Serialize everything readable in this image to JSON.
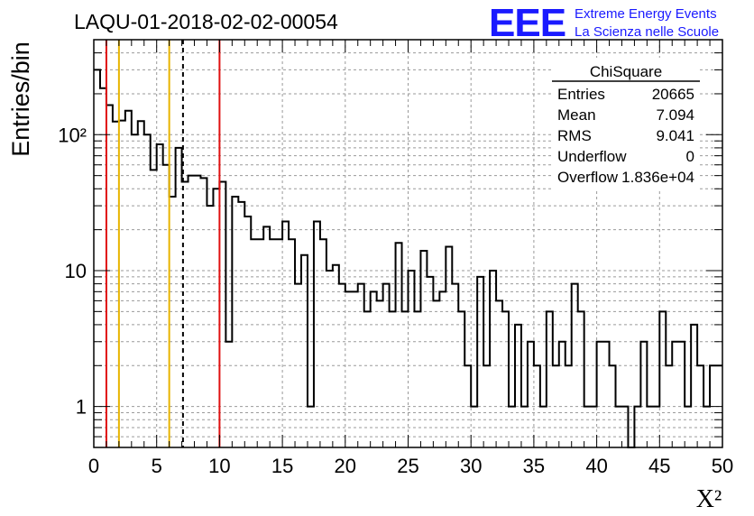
{
  "header": {
    "run_title": "LAQU-01-2018-02-02-00054",
    "logo_text": "EEE",
    "org_line1": "Extreme Energy Events",
    "org_line2": "La Scienza nelle Scuole"
  },
  "stats": {
    "name": "ChiSquare",
    "rows": [
      {
        "label": "Entries",
        "value": "20665"
      },
      {
        "label": "Mean",
        "value": "7.094"
      },
      {
        "label": "RMS",
        "value": "9.041"
      },
      {
        "label": "Underflow",
        "value": "0"
      },
      {
        "label": "Overflow",
        "value": "1.836e+04"
      }
    ]
  },
  "colors": {
    "red": "#e01010",
    "yellow": "#e8b400",
    "logo_blue": "#1a1aff",
    "grid": "#9a9a9a"
  },
  "chart_data": {
    "type": "histogram",
    "bin_width": 0.5,
    "xlim": [
      0,
      50
    ],
    "ylim": [
      0.5,
      500
    ],
    "yscale": "log",
    "grid": true,
    "xlabel": "X²",
    "ylabel": "Entries/bin",
    "x_tick_labels": [
      "0",
      "5",
      "10",
      "15",
      "20",
      "25",
      "30",
      "35",
      "40",
      "45",
      "50"
    ],
    "y_tick_labels": [
      "1",
      "10",
      "10²"
    ],
    "values": [
      300,
      220,
      165,
      125,
      127,
      150,
      100,
      126,
      100,
      55,
      85,
      60,
      35,
      80,
      45,
      50,
      50,
      48,
      30,
      40,
      45,
      3,
      35,
      32,
      25,
      17,
      17,
      21,
      17,
      17,
      23,
      17,
      8,
      13,
      1,
      23,
      17,
      10,
      11,
      8,
      7,
      7,
      8,
      5,
      7,
      6,
      8,
      5,
      16,
      5,
      10,
      5,
      14,
      9,
      6,
      7,
      15,
      8,
      5,
      2,
      1,
      9,
      2,
      10,
      6,
      5,
      1,
      4,
      1,
      3,
      2,
      1,
      5,
      2,
      3,
      2,
      8,
      5,
      1,
      1,
      3,
      3,
      2,
      1,
      1,
      0,
      1,
      3,
      1,
      1,
      5,
      2,
      3,
      3,
      1,
      4,
      2,
      1,
      2,
      2
    ],
    "vertical_lines": [
      {
        "x": 1,
        "color": "red",
        "style": "solid"
      },
      {
        "x": 2,
        "color": "yellow",
        "style": "solid"
      },
      {
        "x": 6,
        "color": "yellow",
        "style": "solid"
      },
      {
        "x": 7.094,
        "color": "black",
        "style": "dashed"
      },
      {
        "x": 10,
        "color": "red",
        "style": "solid"
      }
    ]
  }
}
